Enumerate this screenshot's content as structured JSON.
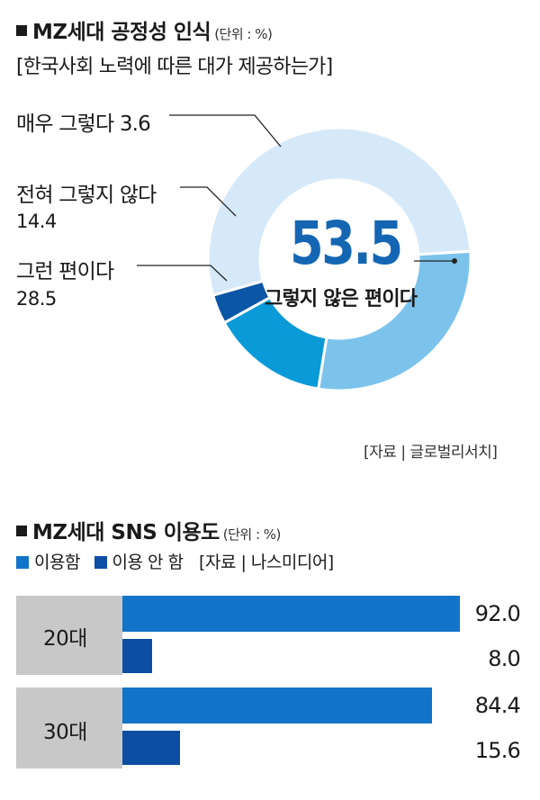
{
  "chart_data": [
    {
      "type": "pie",
      "title": "MZ세대 공정성 인식",
      "unit": "(단위 : %)",
      "subtitle": "[한국사회 노력에 따른 대가 제공하는가]",
      "center_value": "53.5",
      "center_label": "그렇지 않은 편이다",
      "slices": [
        {
          "label": "그렇지 않은 편이다",
          "value": 53.5,
          "value_text": "53.5",
          "color": "#d6e9f8"
        },
        {
          "label": "그런 편이다",
          "value": 28.5,
          "value_text": "28.5",
          "color": "#7cc3ec"
        },
        {
          "label": "전혀 그렇지 않다",
          "value": 14.4,
          "value_text": "14.4",
          "color": "#0a9ad8"
        },
        {
          "label": "매우 그렇다",
          "value": 3.6,
          "value_text": "3.6",
          "color": "#0c56a6"
        }
      ],
      "source": "[자료 | 글로벌리서치]"
    },
    {
      "type": "bar",
      "title": "MZ세대 SNS 이용도",
      "unit": "(단위 : %)",
      "source": "[자료 | 나스미디어]",
      "categories": [
        "20대",
        "30대"
      ],
      "series": [
        {
          "name": "이용함",
          "values": [
            92.0,
            84.4
          ],
          "value_texts": [
            "92.0",
            "84.4"
          ],
          "color": "#1274c8"
        },
        {
          "name": "이용 안 함",
          "values": [
            8.0,
            15.6
          ],
          "value_texts": [
            "8.0",
            "15.6"
          ],
          "color": "#0c4ea3"
        }
      ],
      "xlim": [
        0,
        100
      ]
    }
  ]
}
